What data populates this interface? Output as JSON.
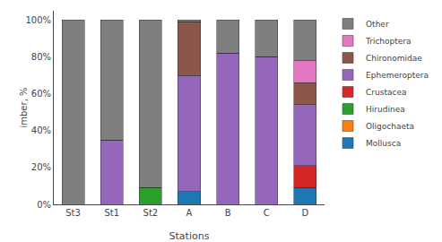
{
  "chart_data": {
    "type": "bar",
    "stacked": true,
    "categories": [
      "St3",
      "St1",
      "St2",
      "A",
      "B",
      "C",
      "D"
    ],
    "series": [
      {
        "name": "Mollusca",
        "values": [
          0,
          0,
          0,
          7,
          0,
          0,
          9
        ]
      },
      {
        "name": "Oligochaeta",
        "values": [
          0,
          0,
          0,
          0,
          0,
          0,
          0
        ]
      },
      {
        "name": "Hirudinea",
        "values": [
          0,
          0,
          9,
          0,
          0,
          0,
          0
        ]
      },
      {
        "name": "Crustacea",
        "values": [
          0,
          0,
          0,
          0,
          0,
          0,
          12
        ]
      },
      {
        "name": "Ephemeroptera",
        "values": [
          0,
          35,
          0,
          63,
          82,
          80,
          33
        ]
      },
      {
        "name": "Chironomidae",
        "values": [
          0,
          0,
          0,
          29,
          0,
          0,
          12
        ]
      },
      {
        "name": "Trichoptera",
        "values": [
          0,
          0,
          0,
          0,
          0,
          0,
          12
        ]
      },
      {
        "name": "Other",
        "values": [
          100,
          65,
          91,
          1,
          18,
          20,
          22
        ]
      }
    ],
    "xlabel": "Stations",
    "ylabel": "imber, %",
    "ylim": [
      0,
      105
    ],
    "yticks": [
      {
        "value": 0,
        "label": "0%"
      },
      {
        "value": 20,
        "label": "20%"
      },
      {
        "value": 40,
        "label": "40%"
      },
      {
        "value": 60,
        "label": "60%"
      },
      {
        "value": 80,
        "label": "80%"
      },
      {
        "value": 100,
        "label": "100%"
      }
    ],
    "grid": false,
    "legend": "right"
  }
}
